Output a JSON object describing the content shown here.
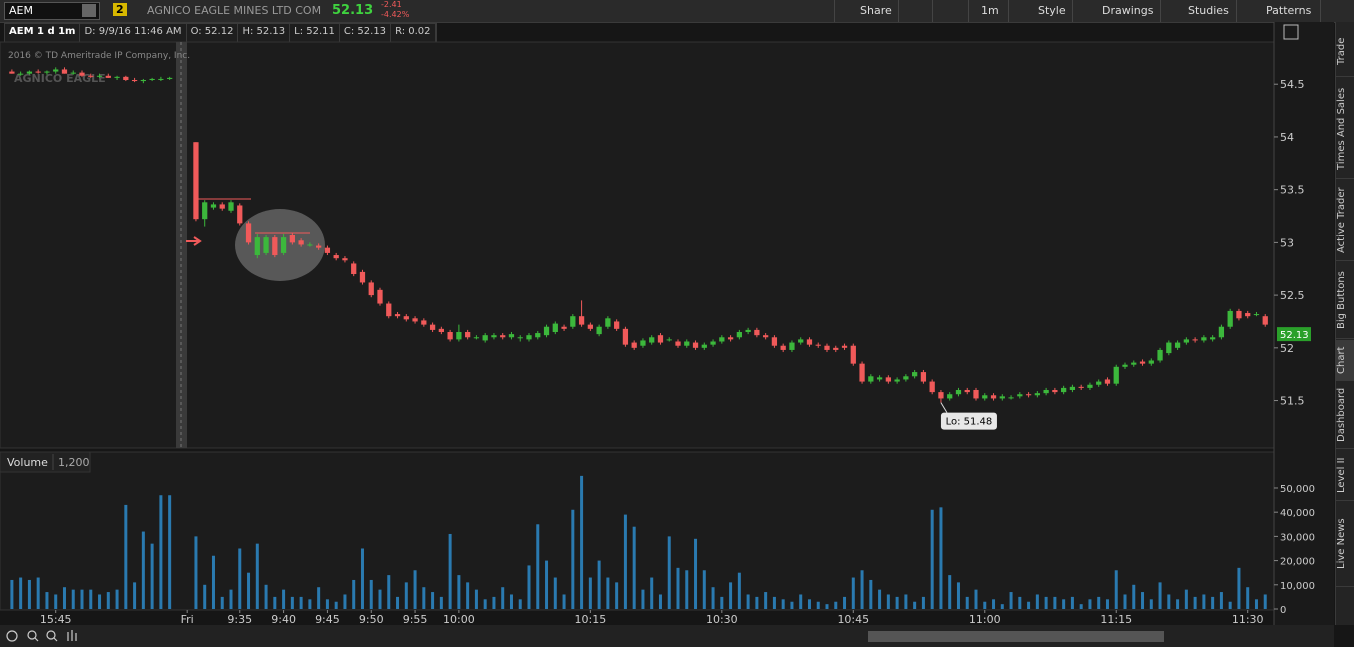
{
  "toolbar": {
    "symbol": "AEM",
    "badge": "2",
    "company": "AGNICO EAGLE MINES LTD COM",
    "last": "52.13",
    "change": "-2.41",
    "change_pct": "-4.42%",
    "buttons": [
      "Share",
      "1m",
      "Style",
      "Drawings",
      "Studies",
      "Patterns"
    ]
  },
  "info_bar": {
    "symbol_period": "AEM 1 d 1m",
    "fields": [
      "D: 9/9/16 11:46 AM",
      "O: 52.12",
      "H: 52.13",
      "L: 52.11",
      "C: 52.13",
      "R: 0.02"
    ]
  },
  "side_tabs": [
    "Trade",
    "Times And Sales",
    "Active Trader",
    "Big Buttons",
    "Chart",
    "Dashboard",
    "Level II",
    "Live News"
  ],
  "chart_data": {
    "type": "candlestick",
    "copyright": "2016 © TD Ameritrade IP Company, Inc.",
    "watermark": "AGNICO EAGLE",
    "up_color": "#3cb83c",
    "down_color": "#f05a5a",
    "last_price": 52.13,
    "low_label": "Lo: 51.48",
    "xlim": [
      -0.9,
      144
    ],
    "xticks": [
      {
        "value": 5,
        "label": "15:45"
      },
      {
        "value": 20,
        "label": "Fri"
      },
      {
        "value": 26,
        "label": "9:35"
      },
      {
        "value": 31,
        "label": "9:40"
      },
      {
        "value": 36,
        "label": "9:45"
      },
      {
        "value": 41,
        "label": "9:50"
      },
      {
        "value": 46,
        "label": "9:55"
      },
      {
        "value": 51,
        "label": "10:00"
      },
      {
        "value": 66,
        "label": "10:15"
      },
      {
        "value": 81,
        "label": "10:30"
      },
      {
        "value": 96,
        "label": "10:45"
      },
      {
        "value": 111,
        "label": "11:00"
      },
      {
        "value": 126,
        "label": "11:15"
      },
      {
        "value": 141,
        "label": "11:30"
      }
    ],
    "ylim": [
      51.05,
      55.09
    ],
    "yticks": [
      51.5,
      52,
      52.5,
      53,
      53.5,
      54,
      54.5
    ],
    "ohlc": [
      [
        54.62,
        54.64,
        54.6,
        54.6
      ],
      [
        54.6,
        54.62,
        54.58,
        54.6
      ],
      [
        54.6,
        54.63,
        54.59,
        54.62
      ],
      [
        54.62,
        54.64,
        54.6,
        54.61
      ],
      [
        54.61,
        54.63,
        54.59,
        54.62
      ],
      [
        54.62,
        54.66,
        54.6,
        54.64
      ],
      [
        54.64,
        54.66,
        54.6,
        54.6
      ],
      [
        54.6,
        54.63,
        54.59,
        54.61
      ],
      [
        54.61,
        54.63,
        54.57,
        54.58
      ],
      [
        54.58,
        54.6,
        54.56,
        54.57
      ],
      [
        54.57,
        54.6,
        54.56,
        54.58
      ],
      [
        54.58,
        54.6,
        54.56,
        54.56
      ],
      [
        54.56,
        54.58,
        54.54,
        54.57
      ],
      [
        54.57,
        54.58,
        54.53,
        54.54
      ],
      [
        54.54,
        54.56,
        54.52,
        54.53
      ],
      [
        54.53,
        54.55,
        54.51,
        54.54
      ],
      [
        54.54,
        54.56,
        54.53,
        54.55
      ],
      [
        54.55,
        54.57,
        54.53,
        54.55
      ],
      [
        54.55,
        54.57,
        54.54,
        54.56
      ],
      null,
      null,
      [
        53.95,
        53.95,
        53.2,
        53.22
      ],
      [
        53.22,
        53.4,
        53.15,
        53.38
      ],
      [
        53.33,
        53.38,
        53.31,
        53.36
      ],
      [
        53.36,
        53.38,
        53.3,
        53.32
      ],
      [
        53.3,
        53.4,
        53.28,
        53.38
      ],
      [
        53.35,
        53.37,
        53.16,
        53.18
      ],
      [
        53.18,
        53.2,
        52.98,
        53.0
      ],
      [
        52.88,
        53.08,
        52.85,
        53.05
      ],
      [
        52.9,
        53.07,
        52.88,
        53.05
      ],
      [
        53.05,
        53.07,
        52.86,
        52.88
      ],
      [
        52.9,
        53.08,
        52.88,
        53.05
      ],
      [
        53.07,
        53.09,
        52.98,
        53.0
      ],
      [
        53.02,
        53.04,
        52.96,
        52.98
      ],
      [
        52.98,
        53.0,
        52.96,
        52.98
      ],
      [
        52.97,
        52.99,
        52.93,
        52.95
      ],
      [
        52.95,
        52.97,
        52.88,
        52.9
      ],
      [
        52.88,
        52.9,
        52.83,
        52.85
      ],
      [
        52.85,
        52.87,
        52.81,
        52.83
      ],
      [
        52.8,
        52.82,
        52.68,
        52.7
      ],
      [
        52.72,
        52.74,
        52.6,
        52.62
      ],
      [
        52.62,
        52.64,
        52.48,
        52.5
      ],
      [
        52.55,
        52.57,
        52.4,
        52.42
      ],
      [
        52.42,
        52.44,
        52.28,
        52.3
      ],
      [
        52.32,
        52.34,
        52.28,
        52.3
      ],
      [
        52.3,
        52.32,
        52.25,
        52.27
      ],
      [
        52.28,
        52.3,
        52.23,
        52.25
      ],
      [
        52.26,
        52.28,
        52.2,
        52.22
      ],
      [
        52.22,
        52.24,
        52.15,
        52.17
      ],
      [
        52.18,
        52.2,
        52.13,
        52.15
      ],
      [
        52.15,
        52.17,
        52.06,
        52.08
      ],
      [
        52.08,
        52.22,
        52.06,
        52.15
      ],
      [
        52.15,
        52.17,
        52.08,
        52.1
      ],
      [
        52.1,
        52.12,
        52.08,
        52.1
      ],
      [
        52.07,
        52.14,
        52.05,
        52.12
      ],
      [
        52.1,
        52.14,
        52.08,
        52.12
      ],
      [
        52.12,
        52.14,
        52.08,
        52.1
      ],
      [
        52.1,
        52.15,
        52.08,
        52.13
      ],
      [
        52.1,
        52.12,
        52.06,
        52.1
      ],
      [
        52.08,
        52.14,
        52.06,
        52.12
      ],
      [
        52.1,
        52.16,
        52.08,
        52.14
      ],
      [
        52.12,
        52.22,
        52.1,
        52.2
      ],
      [
        52.15,
        52.25,
        52.13,
        52.23
      ],
      [
        52.2,
        52.22,
        52.16,
        52.18
      ],
      [
        52.2,
        52.32,
        52.18,
        52.3
      ],
      [
        52.3,
        52.45,
        52.2,
        52.22
      ],
      [
        52.22,
        52.24,
        52.16,
        52.18
      ],
      [
        52.13,
        52.22,
        52.11,
        52.2
      ],
      [
        52.2,
        52.3,
        52.18,
        52.28
      ],
      [
        52.25,
        52.27,
        52.16,
        52.18
      ],
      [
        52.18,
        52.2,
        52.01,
        52.03
      ],
      [
        52.05,
        52.07,
        51.98,
        52.0
      ],
      [
        52.02,
        52.09,
        52.0,
        52.07
      ],
      [
        52.05,
        52.12,
        52.03,
        52.1
      ],
      [
        52.12,
        52.14,
        52.03,
        52.05
      ],
      [
        52.08,
        52.1,
        52.06,
        52.08
      ],
      [
        52.06,
        52.08,
        52.0,
        52.02
      ],
      [
        52.02,
        52.08,
        52.0,
        52.06
      ],
      [
        52.05,
        52.07,
        51.98,
        52.0
      ],
      [
        52.0,
        52.05,
        51.98,
        52.03
      ],
      [
        52.03,
        52.08,
        52.01,
        52.06
      ],
      [
        52.06,
        52.12,
        52.04,
        52.1
      ],
      [
        52.1,
        52.12,
        52.06,
        52.08
      ],
      [
        52.1,
        52.17,
        52.08,
        52.15
      ],
      [
        52.15,
        52.19,
        52.13,
        52.17
      ],
      [
        52.17,
        52.19,
        52.1,
        52.12
      ],
      [
        52.12,
        52.14,
        52.08,
        52.1
      ],
      [
        52.1,
        52.12,
        52.0,
        52.02
      ],
      [
        52.02,
        52.04,
        51.96,
        51.98
      ],
      [
        51.98,
        52.07,
        51.96,
        52.05
      ],
      [
        52.05,
        52.1,
        52.03,
        52.08
      ],
      [
        52.08,
        52.1,
        52.01,
        52.03
      ],
      [
        52.03,
        52.05,
        52.0,
        52.02
      ],
      [
        52.02,
        52.04,
        51.96,
        51.98
      ],
      [
        52.0,
        52.02,
        51.96,
        51.98
      ],
      [
        52.02,
        52.04,
        51.98,
        52.0
      ],
      [
        52.02,
        52.04,
        51.83,
        51.85
      ],
      [
        51.85,
        51.87,
        51.66,
        51.68
      ],
      [
        51.68,
        51.75,
        51.66,
        51.73
      ],
      [
        51.7,
        51.74,
        51.68,
        51.72
      ],
      [
        51.72,
        51.74,
        51.66,
        51.68
      ],
      [
        51.68,
        51.72,
        51.66,
        51.7
      ],
      [
        51.7,
        51.75,
        51.68,
        51.73
      ],
      [
        51.73,
        51.79,
        51.71,
        51.77
      ],
      [
        51.77,
        51.79,
        51.66,
        51.68
      ],
      [
        51.68,
        51.7,
        51.56,
        51.58
      ],
      [
        51.58,
        51.6,
        51.48,
        51.52
      ],
      [
        51.52,
        51.58,
        51.5,
        51.56
      ],
      [
        51.56,
        51.62,
        51.54,
        51.6
      ],
      [
        51.6,
        51.62,
        51.56,
        51.58
      ],
      [
        51.6,
        51.62,
        51.5,
        51.52
      ],
      [
        51.52,
        51.57,
        51.5,
        51.55
      ],
      [
        51.55,
        51.57,
        51.5,
        51.52
      ],
      [
        51.52,
        51.56,
        51.5,
        51.54
      ],
      [
        51.53,
        51.55,
        51.51,
        51.53
      ],
      [
        51.54,
        51.58,
        51.52,
        51.56
      ],
      [
        51.56,
        51.58,
        51.53,
        51.55
      ],
      [
        51.55,
        51.59,
        51.53,
        51.57
      ],
      [
        51.57,
        51.62,
        51.55,
        51.6
      ],
      [
        51.6,
        51.62,
        51.56,
        51.58
      ],
      [
        51.58,
        51.64,
        51.56,
        51.62
      ],
      [
        51.6,
        51.65,
        51.58,
        51.63
      ],
      [
        51.63,
        51.65,
        51.6,
        51.62
      ],
      [
        51.62,
        51.67,
        51.6,
        51.65
      ],
      [
        51.65,
        51.7,
        51.63,
        51.68
      ],
      [
        51.7,
        51.72,
        51.64,
        51.66
      ],
      [
        51.66,
        51.84,
        51.64,
        51.82
      ],
      [
        51.82,
        51.86,
        51.8,
        51.84
      ],
      [
        51.84,
        51.88,
        51.82,
        51.86
      ],
      [
        51.87,
        51.89,
        51.83,
        51.85
      ],
      [
        51.85,
        51.9,
        51.83,
        51.88
      ],
      [
        51.88,
        52.0,
        51.86,
        51.98
      ],
      [
        51.95,
        52.07,
        51.93,
        52.05
      ],
      [
        52.0,
        52.07,
        51.98,
        52.05
      ],
      [
        52.05,
        52.1,
        52.03,
        52.08
      ],
      [
        52.08,
        52.1,
        52.05,
        52.07
      ],
      [
        52.07,
        52.12,
        52.05,
        52.1
      ],
      [
        52.08,
        52.12,
        52.06,
        52.1
      ],
      [
        52.1,
        52.22,
        52.08,
        52.2
      ],
      [
        52.2,
        52.37,
        52.18,
        52.35
      ],
      [
        52.35,
        52.37,
        52.26,
        52.28
      ],
      [
        52.33,
        52.35,
        52.28,
        52.3
      ],
      [
        52.32,
        52.34,
        52.3,
        52.32
      ],
      [
        52.3,
        52.32,
        52.2,
        52.22
      ]
    ],
    "volume": {
      "title": "Volume",
      "current": "1,200",
      "color": "#2a7ab0",
      "ylim": [
        0,
        56600
      ],
      "yticks": [
        0,
        {
          "value": 10000,
          "label": "10,000"
        },
        {
          "value": 20000,
          "label": "20,000"
        },
        {
          "value": 30000,
          "label": "30,000"
        },
        {
          "value": 40000,
          "label": "40,000"
        },
        {
          "value": 50000,
          "label": "50,000"
        }
      ],
      "values": [
        12000,
        13000,
        12000,
        13000,
        7000,
        6000,
        9000,
        8000,
        8000,
        8000,
        6000,
        7000,
        8000,
        43000,
        11000,
        32000,
        27000,
        47000,
        47000,
        null,
        null,
        30000,
        10000,
        22000,
        5000,
        8000,
        25000,
        15000,
        27000,
        10000,
        5000,
        8000,
        5000,
        5000,
        4000,
        9000,
        4000,
        3000,
        6000,
        12000,
        25000,
        12000,
        8000,
        14000,
        5000,
        11000,
        16000,
        9000,
        7000,
        5000,
        31000,
        14000,
        11000,
        8000,
        4000,
        5000,
        9000,
        6000,
        4000,
        18000,
        35000,
        20000,
        13000,
        6000,
        41000,
        55000,
        13000,
        20000,
        13000,
        11000,
        39000,
        34000,
        8000,
        13000,
        6000,
        30000,
        17000,
        16000,
        29000,
        16000,
        9000,
        5000,
        11000,
        15000,
        6000,
        5000,
        7000,
        5000,
        4000,
        3000,
        6000,
        4000,
        3000,
        2000,
        3000,
        5000,
        13000,
        16000,
        12000,
        8000,
        6000,
        5000,
        6000,
        3000,
        5000,
        41000,
        42000,
        14000,
        11000,
        5000,
        8000,
        3000,
        4000,
        2000,
        7000,
        5000,
        3000,
        6000,
        5000,
        5000,
        4000,
        5000,
        2000,
        4000,
        5000,
        4000,
        16000,
        6000,
        10000,
        7000,
        4000,
        11000,
        6000,
        4000,
        8000,
        5000,
        6000,
        5000,
        7000,
        3000,
        17000,
        9000,
        4000,
        6000
      ]
    }
  }
}
